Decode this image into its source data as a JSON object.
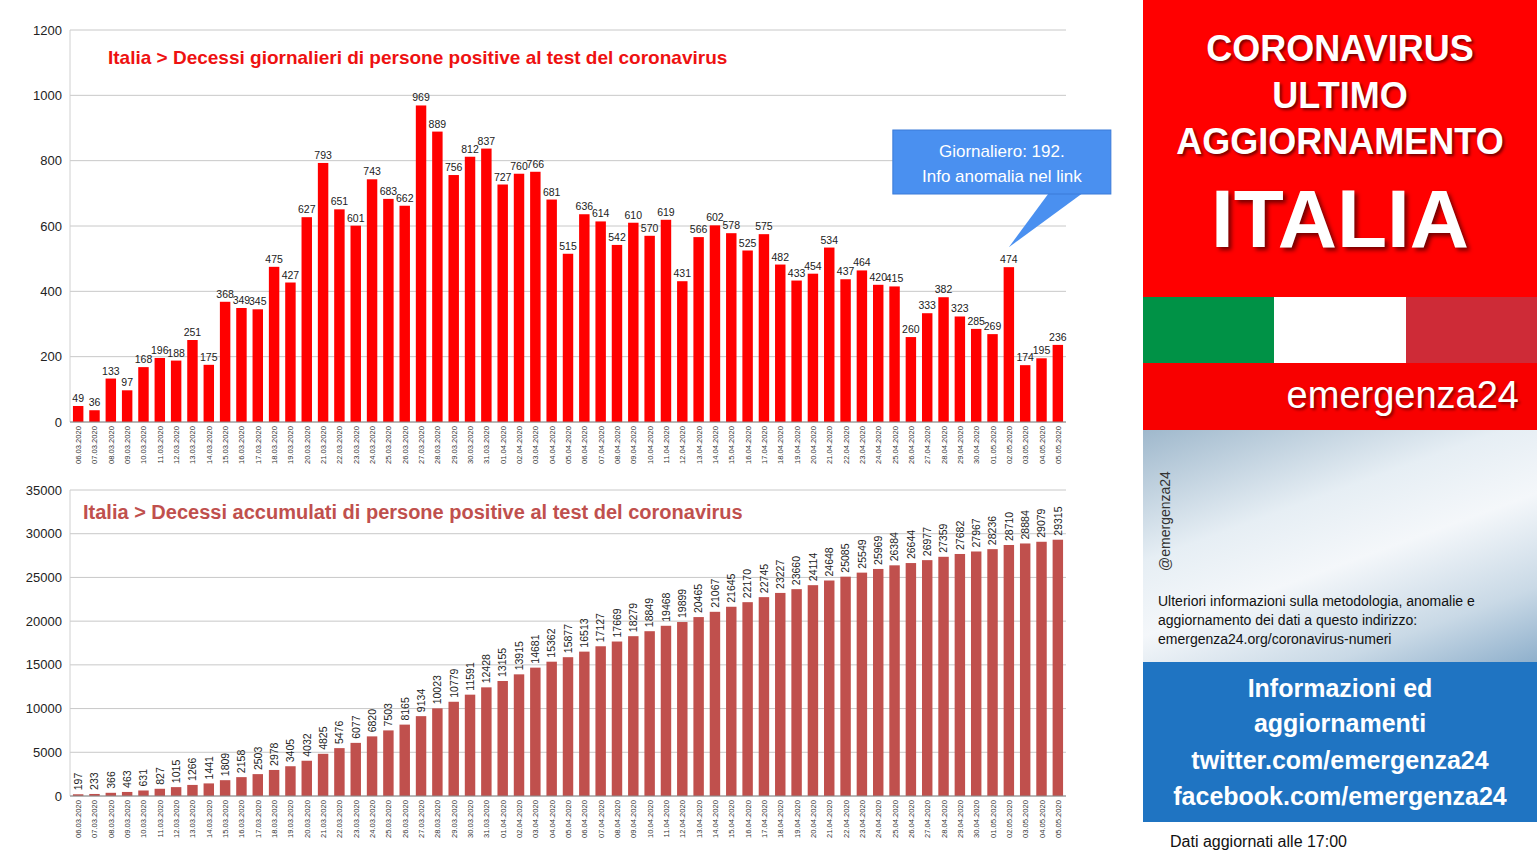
{
  "chart_data": [
    {
      "type": "bar",
      "title": "Italia > Decessi giornalieri di persone positive al test del coronavirus",
      "categories": [
        "06.03.2020",
        "07.03.2020",
        "08.03.2020",
        "09.03.2020",
        "10.03.2020",
        "11.03.2020",
        "12.03.2020",
        "13.03.2020",
        "14.03.2020",
        "15.03.2020",
        "16.03.2020",
        "17.03.2020",
        "18.03.2020",
        "19.03.2020",
        "20.03.2020",
        "21.03.2020",
        "22.03.2020",
        "23.03.2020",
        "24.03.2020",
        "25.03.2020",
        "26.03.2020",
        "27.03.2020",
        "28.03.2020",
        "29.03.2020",
        "30.03.2020",
        "31.03.2020",
        "01.04.2020",
        "02.04.2020",
        "03.04.2020",
        "04.04.2020",
        "05.04.2020",
        "06.04.2020",
        "07.04.2020",
        "08.04.2020",
        "09.04.2020",
        "10.04.2020",
        "11.04.2020",
        "12.04.2020",
        "13.04.2020",
        "14.04.2020",
        "15.04.2020",
        "16.04.2020",
        "17.04.2020",
        "18.04.2020",
        "19.04.2020",
        "20.04.2020",
        "21.04.2020",
        "22.04.2020",
        "23.04.2020",
        "24.04.2020",
        "25.04.2020",
        "26.04.2020",
        "27.04.2020",
        "28.04.2020",
        "29.04.2020",
        "30.04.2020",
        "01.05.2020",
        "02.05.2020",
        "03.05.2020",
        "04.05.2020",
        "05.05.2020"
      ],
      "values": [
        49,
        36,
        133,
        97,
        168,
        196,
        188,
        251,
        175,
        368,
        349,
        345,
        475,
        427,
        627,
        793,
        651,
        601,
        743,
        683,
        662,
        969,
        889,
        756,
        812,
        837,
        727,
        760,
        766,
        681,
        515,
        636,
        614,
        542,
        610,
        570,
        619,
        431,
        566,
        602,
        578,
        525,
        575,
        482,
        433,
        454,
        534,
        437,
        464,
        420,
        415,
        260,
        333,
        382,
        323,
        285,
        269,
        474,
        174,
        195,
        236
      ],
      "color": "#ff0000",
      "ylim": [
        0,
        1200
      ],
      "yticks": [
        0,
        200,
        400,
        600,
        800,
        1000,
        1200
      ],
      "grid": true,
      "data_labels": true,
      "annotations": [
        {
          "text": [
            "Giornaliero: 192.",
            "Info anomalia nel link"
          ],
          "x": "02.05.2020"
        }
      ]
    },
    {
      "type": "bar",
      "title": "Italia > Decessi accumulati di persone positive al test del coronavirus",
      "categories": [
        "06.03.2020",
        "07.03.2020",
        "08.03.2020",
        "09.03.2020",
        "10.03.2020",
        "11.03.2020",
        "12.03.2020",
        "13.03.2020",
        "14.03.2020",
        "15.03.2020",
        "16.03.2020",
        "17.03.2020",
        "18.03.2020",
        "19.03.2020",
        "20.03.2020",
        "21.03.2020",
        "22.03.2020",
        "23.03.2020",
        "24.03.2020",
        "25.03.2020",
        "26.03.2020",
        "27.03.2020",
        "28.03.2020",
        "29.03.2020",
        "30.03.2020",
        "31.03.2020",
        "01.04.2020",
        "02.04.2020",
        "03.04.2020",
        "04.04.2020",
        "05.04.2020",
        "06.04.2020",
        "07.04.2020",
        "08.04.2020",
        "09.04.2020",
        "10.04.2020",
        "11.04.2020",
        "12.04.2020",
        "13.04.2020",
        "14.04.2020",
        "15.04.2020",
        "16.04.2020",
        "17.04.2020",
        "18.04.2020",
        "19.04.2020",
        "20.04.2020",
        "21.04.2020",
        "22.04.2020",
        "23.04.2020",
        "24.04.2020",
        "25.04.2020",
        "26.04.2020",
        "27.04.2020",
        "28.04.2020",
        "29.04.2020",
        "30.04.2020",
        "01.05.2020",
        "02.05.2020",
        "03.05.2020",
        "04.05.2020",
        "05.05.2020"
      ],
      "values": [
        197,
        233,
        366,
        463,
        631,
        827,
        1015,
        1266,
        1441,
        1809,
        2158,
        2503,
        2978,
        3405,
        4032,
        4825,
        5476,
        6077,
        6820,
        7503,
        8165,
        9134,
        10023,
        10779,
        11591,
        12428,
        13155,
        13915,
        14681,
        15362,
        15877,
        16513,
        17127,
        17669,
        18279,
        18849,
        19468,
        19899,
        20465,
        21067,
        21645,
        22170,
        22745,
        23227,
        23660,
        24114,
        24648,
        25085,
        25549,
        25969,
        26384,
        26644,
        26977,
        27359,
        27682,
        27967,
        28236,
        28710,
        28884,
        29079,
        29315
      ],
      "color": "#c0504d",
      "ylim": [
        0,
        35000
      ],
      "yticks": [
        0,
        5000,
        10000,
        15000,
        20000,
        25000,
        30000,
        35000
      ],
      "grid": true,
      "data_labels": true
    }
  ],
  "panel": {
    "header": [
      "CORONAVIRUS",
      "ULTIMO",
      "AGGIORNAMENTO"
    ],
    "country": "ITALIA",
    "brand": "emergenza24",
    "handle": "@emergenza24",
    "note": "Ulteriori informazioni sulla metodologia, anomalie e aggiornamento dei dati a questo indirizzo: emergenza24.org/coronavirus-numeri",
    "links": [
      "Informazioni ed",
      "aggiornamenti",
      "twitter.com/emergenza24",
      "facebook.com/emergenza24"
    ],
    "footer": "Dati aggiornati alle 17:00"
  }
}
